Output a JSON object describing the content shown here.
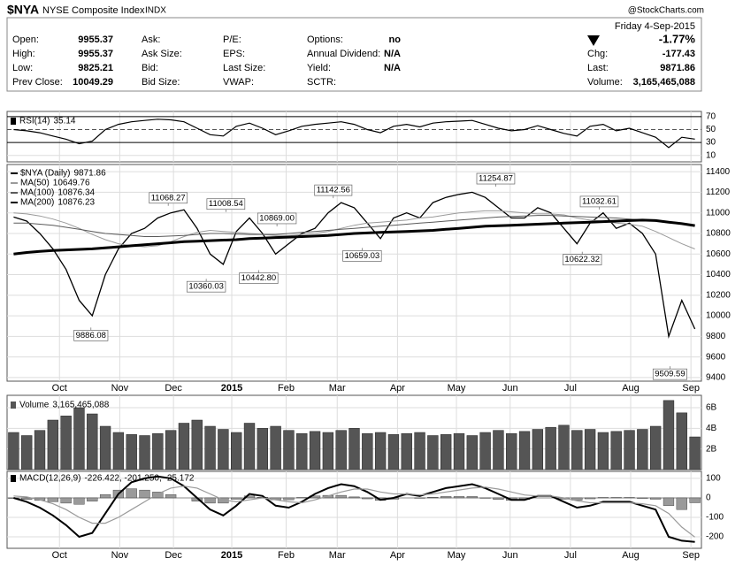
{
  "header": {
    "symbol": "$NYA",
    "name": "NYSE Composite Index",
    "exchange": "INDX",
    "source": "@StockCharts.com",
    "date": "Friday  4-Sep-2015",
    "pct_change": "-1.77%",
    "columns": [
      [
        {
          "label": "Open:",
          "value": "9955.37"
        },
        {
          "label": "High:",
          "value": "9955.37"
        },
        {
          "label": "Low:",
          "value": "9825.21"
        },
        {
          "label": "Prev Close:",
          "value": "10049.29"
        }
      ],
      [
        {
          "label": "Ask:"
        },
        {
          "label": "Ask Size:"
        },
        {
          "label": "Bid:"
        },
        {
          "label": "Bid Size:"
        }
      ],
      [
        {
          "label": "P/E:"
        },
        {
          "label": "EPS:"
        },
        {
          "label": "Last Size:"
        },
        {
          "label": "VWAP:"
        }
      ],
      [
        {
          "label": "Options:",
          "value": "no"
        },
        {
          "label": "Annual Dividend:",
          "value": "N/A"
        },
        {
          "label": "Yield:",
          "value": "N/A"
        },
        {
          "label": "SCTR:"
        }
      ]
    ],
    "right": [
      {
        "label": "Chg:",
        "value": "-177.43"
      },
      {
        "label": "Last:",
        "value": "9871.86"
      },
      {
        "label": "Volume:",
        "value": "3,165,465,088"
      }
    ]
  },
  "chart_data": [
    {
      "type": "line",
      "panel": "rsi",
      "ylim": [
        0,
        78
      ],
      "yticks": [
        10,
        30,
        50,
        70
      ],
      "series": [
        {
          "name": "RSI(14)",
          "color": "#000000",
          "values": [
            50,
            48,
            45,
            40,
            35,
            28,
            32,
            50,
            58,
            62,
            64,
            66,
            65,
            62,
            52,
            42,
            40,
            55,
            60,
            52,
            42,
            48,
            55,
            58,
            60,
            62,
            58,
            50,
            45,
            55,
            58,
            54,
            60,
            62,
            63,
            64,
            58,
            52,
            48,
            50,
            56,
            50,
            44,
            40,
            55,
            58,
            48,
            52,
            45,
            38,
            22,
            38,
            35.14
          ]
        }
      ]
    },
    {
      "type": "line",
      "panel": "price",
      "ylim": [
        9365,
        11470
      ],
      "yticks": [
        9400,
        9600,
        9800,
        10000,
        10200,
        10400,
        10600,
        10800,
        11000,
        11200,
        11400
      ],
      "xticks": [
        {
          "value": 3.5,
          "label": "Oct"
        },
        {
          "value": 8.1,
          "label": "Nov"
        },
        {
          "value": 12.2,
          "label": "Dec"
        },
        {
          "value": 16.65,
          "label": "2015"
        },
        {
          "value": 20.8,
          "label": "Feb"
        },
        {
          "value": 24.7,
          "label": "Mar"
        },
        {
          "value": 29.3,
          "label": "Apr"
        },
        {
          "value": 33.8,
          "label": "May"
        },
        {
          "value": 37.9,
          "label": "Jun"
        },
        {
          "value": 42.5,
          "label": "Jul"
        },
        {
          "value": 47.1,
          "label": "Aug"
        },
        {
          "value": 51.7,
          "label": "Sep"
        }
      ],
      "series": [
        {
          "name": "$NYA (Daily)",
          "color": "#000000",
          "values": [
            10960,
            10920,
            10800,
            10650,
            10450,
            10150,
            10000,
            10400,
            10650,
            10800,
            10850,
            10950,
            11000,
            11030,
            10850,
            10600,
            10500,
            10820,
            10950,
            10800,
            10600,
            10700,
            10800,
            10850,
            11000,
            11100,
            11050,
            10900,
            10750,
            10950,
            11000,
            10950,
            11100,
            11150,
            11180,
            11200,
            11150,
            11050,
            10950,
            10950,
            11050,
            11000,
            10850,
            10700,
            10900,
            11000,
            10850,
            10900,
            10800,
            10600,
            9800,
            10150,
            9871.86
          ]
        },
        {
          "name": "MA(50)",
          "color": "#9a9a9a",
          "values": [
            11000,
            10990,
            10970,
            10940,
            10900,
            10850,
            10790,
            10740,
            10700,
            10680,
            10670,
            10680,
            10720,
            10770,
            10810,
            10830,
            10820,
            10810,
            10800,
            10790,
            10780,
            10780,
            10790,
            10800,
            10820,
            10850,
            10880,
            10900,
            10910,
            10920,
            10930,
            10950,
            10960,
            10980,
            11000,
            11010,
            11020,
            11020,
            11010,
            11000,
            10990,
            10990,
            10980,
            10950,
            10930,
            10920,
            10900,
            10890,
            10870,
            10820,
            10760,
            10700,
            10649.76
          ]
        },
        {
          "name": "MA(100)",
          "color": "#5a5a5a",
          "values": [
            10900,
            10900,
            10890,
            10880,
            10860,
            10840,
            10820,
            10800,
            10790,
            10780,
            10770,
            10770,
            10775,
            10780,
            10790,
            10800,
            10800,
            10795,
            10790,
            10790,
            10790,
            10800,
            10810,
            10820,
            10830,
            10840,
            10850,
            10860,
            10870,
            10880,
            10890,
            10900,
            10910,
            10920,
            10930,
            10940,
            10950,
            10960,
            10965,
            10970,
            10975,
            10975,
            10970,
            10965,
            10960,
            10955,
            10950,
            10940,
            10930,
            10920,
            10905,
            10890,
            10876.34
          ]
        },
        {
          "name": "MA(200)",
          "color": "#000000",
          "values": [
            10600,
            10615,
            10625,
            10635,
            10640,
            10645,
            10650,
            10660,
            10670,
            10680,
            10690,
            10700,
            10710,
            10720,
            10725,
            10730,
            10735,
            10740,
            10750,
            10755,
            10760,
            10765,
            10770,
            10775,
            10780,
            10790,
            10800,
            10805,
            10810,
            10815,
            10820,
            10825,
            10830,
            10840,
            10850,
            10860,
            10870,
            10875,
            10880,
            10885,
            10890,
            10895,
            10900,
            10905,
            10910,
            10915,
            10920,
            10925,
            10930,
            10925,
            10910,
            10895,
            10876.23
          ]
        }
      ],
      "annotations": [
        {
          "x": 5.9,
          "value": 9886.08
        },
        {
          "x": 11.8,
          "value": 11068.27
        },
        {
          "x": 14.7,
          "value": 10360.03
        },
        {
          "x": 16.2,
          "value": 11008.54
        },
        {
          "x": 18.7,
          "value": 10442.8,
          "label": "10442.80"
        },
        {
          "x": 20.1,
          "value": 10869,
          "label": "10869.00"
        },
        {
          "x": 24.4,
          "value": 11142.56
        },
        {
          "x": 26.6,
          "value": 10659.03
        },
        {
          "x": 36.8,
          "value": 11254.87
        },
        {
          "x": 43.4,
          "value": 10622.32
        },
        {
          "x": 44.7,
          "value": 11032.61
        },
        {
          "x": 50.1,
          "value": 9509.59
        }
      ]
    },
    {
      "type": "bar",
      "panel": "volume",
      "ylim": [
        0,
        7.2
      ],
      "yticks": [
        {
          "value": 2,
          "label": "2B"
        },
        {
          "value": 4,
          "label": "4B"
        },
        {
          "value": 6,
          "label": "6B"
        }
      ],
      "series": [
        {
          "name": "Volume",
          "color": "#555555",
          "values": [
            3.6,
            3.3,
            3.8,
            4.8,
            5.2,
            6.0,
            5.4,
            4.2,
            3.6,
            3.4,
            3.3,
            3.5,
            3.8,
            4.5,
            4.8,
            4.2,
            3.9,
            3.6,
            4.5,
            4.0,
            4.2,
            3.8,
            3.5,
            3.7,
            3.6,
            3.8,
            4.0,
            3.5,
            3.6,
            3.4,
            3.5,
            3.6,
            3.3,
            3.4,
            3.5,
            3.3,
            3.6,
            3.8,
            3.5,
            3.7,
            3.9,
            4.1,
            4.3,
            3.8,
            3.9,
            3.6,
            3.7,
            3.8,
            3.9,
            4.2,
            6.7,
            5.5,
            3.17
          ]
        }
      ]
    },
    {
      "type": "macd",
      "panel": "macd",
      "name": "MACD(12,26,9)",
      "legend_text": "-226.422, -201.250, -25.172",
      "ylim": [
        -259,
        136
      ],
      "yticks": [
        -200,
        -100,
        0,
        100
      ],
      "xticks": [
        {
          "value": 3.5,
          "label": "Oct"
        },
        {
          "value": 8.1,
          "label": "Nov"
        },
        {
          "value": 12.2,
          "label": "Dec"
        },
        {
          "value": 16.65,
          "label": "2015"
        },
        {
          "value": 20.8,
          "label": "Feb"
        },
        {
          "value": 24.7,
          "label": "Mar"
        },
        {
          "value": 29.3,
          "label": "Apr"
        },
        {
          "value": 33.8,
          "label": "May"
        },
        {
          "value": 37.9,
          "label": "Jun"
        },
        {
          "value": 42.5,
          "label": "Jul"
        },
        {
          "value": 47.1,
          "label": "Aug"
        },
        {
          "value": 51.7,
          "label": "Sep"
        }
      ],
      "series": [
        {
          "kind": "bar",
          "color": "#9a9a9a",
          "values": [
            -3,
            -8,
            -13,
            -20,
            -27,
            -33,
            -17,
            17,
            40,
            47,
            40,
            30,
            17,
            0,
            -17,
            -27,
            -27,
            -7,
            10,
            3,
            -10,
            -10,
            2,
            10,
            13,
            13,
            5,
            -5,
            -13,
            -7,
            0,
            -2,
            3,
            7,
            7,
            7,
            -2,
            -8,
            -13,
            -8,
            0,
            0,
            -7,
            -12,
            -5,
            2,
            2,
            2,
            -3,
            -7,
            -40,
            -60,
            -25.172
          ]
        },
        {
          "kind": "line",
          "color": "#000000",
          "values": [
            0,
            -20,
            -50,
            -90,
            -140,
            -200,
            -180,
            -80,
            20,
            80,
            100,
            110,
            100,
            60,
            0,
            -60,
            -90,
            -40,
            20,
            10,
            -40,
            -50,
            -20,
            20,
            50,
            70,
            60,
            30,
            -10,
            0,
            20,
            10,
            30,
            50,
            60,
            70,
            50,
            20,
            -10,
            -10,
            10,
            10,
            -20,
            -50,
            -40,
            -20,
            -20,
            -20,
            -40,
            -60,
            -200,
            -220,
            -226.422
          ]
        },
        {
          "kind": "line",
          "color": "#9a9a9a",
          "values": [
            10,
            5,
            -10,
            -30,
            -60,
            -100,
            -130,
            -130,
            -100,
            -60,
            -20,
            20,
            50,
            60,
            50,
            20,
            -10,
            -20,
            -10,
            0,
            -10,
            -20,
            -25,
            -10,
            10,
            30,
            45,
            45,
            30,
            20,
            20,
            15,
            20,
            30,
            40,
            50,
            55,
            45,
            30,
            15,
            10,
            10,
            0,
            -15,
            -25,
            -25,
            -25,
            -25,
            -30,
            -40,
            -80,
            -150,
            -201.25
          ]
        }
      ]
    }
  ]
}
